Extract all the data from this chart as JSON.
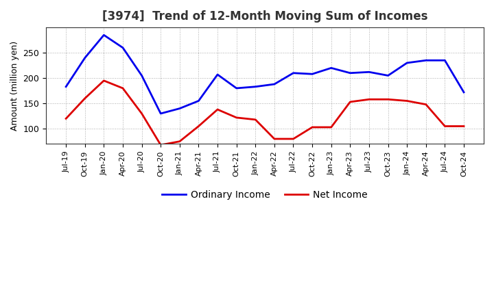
{
  "title": "[3974]  Trend of 12-Month Moving Sum of Incomes",
  "ylabel": "Amount (million yen)",
  "ylim": [
    70,
    300
  ],
  "yticks": [
    100,
    150,
    200,
    250
  ],
  "background_color": "#ffffff",
  "plot_bg_color": "#ffffff",
  "grid_color": "#aaaaaa",
  "ordinary_income_color": "#0000ee",
  "net_income_color": "#dd0000",
  "x_labels": [
    "Jul-19",
    "Oct-19",
    "Jan-20",
    "Apr-20",
    "Jul-20",
    "Oct-20",
    "Jan-21",
    "Apr-21",
    "Jul-21",
    "Oct-21",
    "Jan-22",
    "Apr-22",
    "Jul-22",
    "Oct-22",
    "Jan-23",
    "Apr-23",
    "Jul-23",
    "Oct-23",
    "Jan-24",
    "Apr-24",
    "Jul-24",
    "Oct-24"
  ],
  "ordinary_income": [
    183,
    240,
    285,
    260,
    205,
    130,
    140,
    155,
    207,
    180,
    183,
    188,
    210,
    208,
    220,
    210,
    212,
    205,
    230,
    235,
    235,
    172
  ],
  "net_income": [
    120,
    160,
    195,
    180,
    130,
    68,
    75,
    105,
    138,
    122,
    118,
    80,
    80,
    103,
    103,
    153,
    158,
    158,
    155,
    148,
    105,
    105
  ]
}
